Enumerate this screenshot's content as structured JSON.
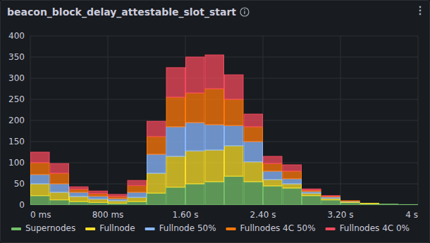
{
  "chart_data": {
    "type": "histogram",
    "title": "beacon_block_delay_attestable_slot_start",
    "stacked": true,
    "grid": true,
    "legend": "bottom",
    "bins": [
      0,
      200,
      400,
      600,
      800,
      1000,
      1200,
      1400,
      1600,
      1800,
      2000,
      2200,
      2400,
      2600,
      2800,
      3000,
      3200,
      3400,
      3600,
      3800,
      4000
    ],
    "xlim": [
      0,
      4000
    ],
    "xticks": [
      {
        "value": 0,
        "label": "0 ms"
      },
      {
        "value": 800,
        "label": "800 ms"
      },
      {
        "value": 1600,
        "label": "1.60 s"
      },
      {
        "value": 2400,
        "label": "2.40 s"
      },
      {
        "value": 3200,
        "label": "3.20 s"
      },
      {
        "value": 4000,
        "label": "4 s"
      }
    ],
    "ylim": [
      0,
      400
    ],
    "yticks": [
      0,
      50,
      100,
      150,
      200,
      250,
      300,
      350,
      400
    ],
    "series": [
      {
        "name": "Supernodes",
        "color": "#73bf69",
        "values": [
          22,
          12,
          8,
          6,
          4,
          8,
          28,
          42,
          50,
          55,
          68,
          55,
          45,
          40,
          22,
          12,
          6,
          3,
          2,
          1
        ]
      },
      {
        "name": "Fullnode",
        "color": "#fade2a",
        "values": [
          28,
          18,
          12,
          8,
          6,
          10,
          47,
          73,
          78,
          75,
          72,
          47,
          15,
          10,
          6,
          4,
          2,
          1,
          0,
          0
        ]
      },
      {
        "name": "Fullnode 50%",
        "color": "#8ab8ff",
        "values": [
          22,
          20,
          10,
          7,
          5,
          12,
          45,
          70,
          67,
          60,
          48,
          48,
          20,
          12,
          4,
          3,
          1,
          0,
          0,
          0
        ]
      },
      {
        "name": "Fullnodes 4C 50%",
        "color": "#ff780a",
        "values": [
          28,
          25,
          7,
          6,
          5,
          16,
          42,
          70,
          70,
          85,
          62,
          35,
          18,
          18,
          3,
          2,
          1,
          0,
          0,
          0
        ]
      },
      {
        "name": "Fullnodes 4C 0%",
        "color": "#f2495c",
        "values": [
          25,
          23,
          6,
          6,
          5,
          12,
          36,
          70,
          85,
          80,
          58,
          30,
          17,
          15,
          3,
          1,
          0,
          0,
          0,
          0
        ]
      }
    ]
  }
}
